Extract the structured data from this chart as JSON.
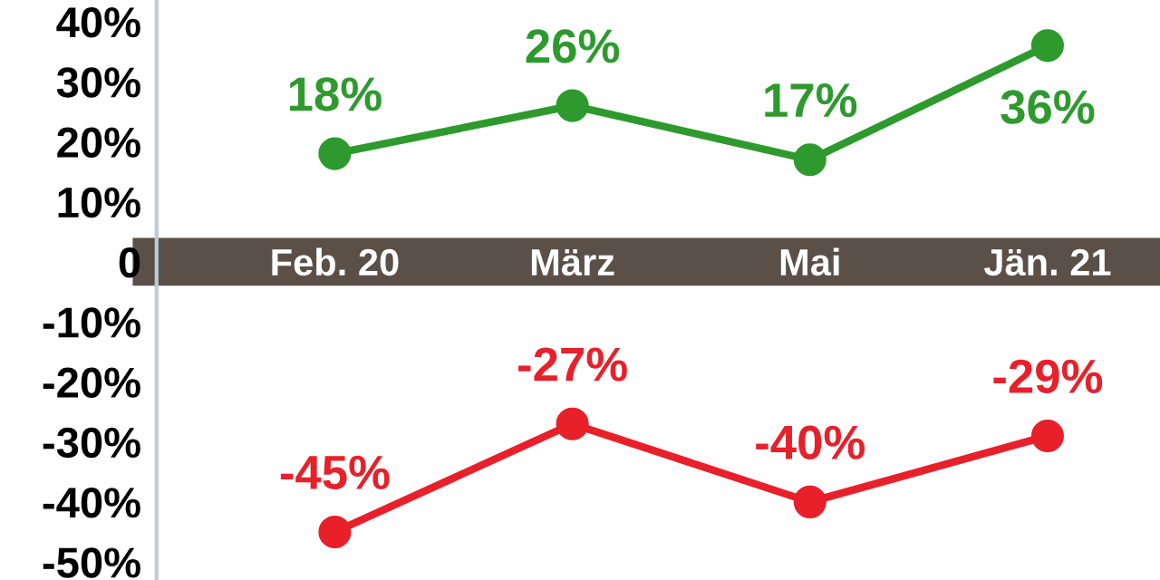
{
  "chart_data": {
    "type": "line",
    "categories": [
      "Feb. 20",
      "März",
      "Mai",
      "Jän. 21"
    ],
    "series": [
      {
        "color": "#2e9a2e",
        "values": [
          18,
          26,
          17,
          36
        ],
        "value_labels": [
          "18%",
          "26%",
          "17%",
          "36%"
        ]
      },
      {
        "color": "#e8202a",
        "values": [
          -45,
          -27,
          -40,
          -29
        ],
        "value_labels": [
          "-45%",
          "-27%",
          "-40%",
          "-29%"
        ]
      }
    ],
    "ylim": [
      -53,
      43.6
    ],
    "yticks": [
      {
        "value": 40,
        "label": "40%"
      },
      {
        "value": 30,
        "label": "30%"
      },
      {
        "value": 20,
        "label": "20%"
      },
      {
        "value": 10,
        "label": "10%"
      },
      0,
      {
        "value": -10,
        "label": "-10%"
      },
      {
        "value": -20,
        "label": "-20%"
      },
      {
        "value": -30,
        "label": "-30%"
      },
      {
        "value": -40,
        "label": "-40%"
      },
      {
        "value": -50,
        "label": "-50%"
      }
    ],
    "grid": false,
    "legend": false,
    "marker": "circle",
    "line_style": "solid"
  }
}
